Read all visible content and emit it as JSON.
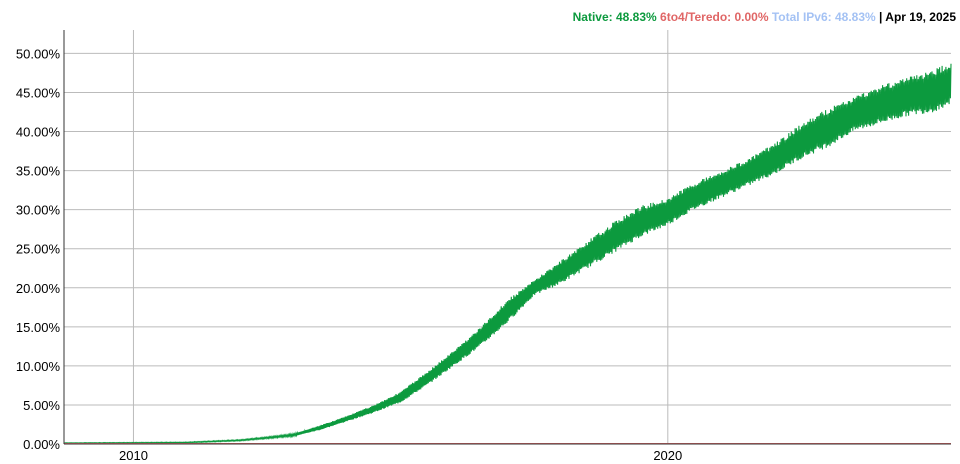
{
  "legend": {
    "native": "Native: 48.83%",
    "teredo": "6to4/Teredo: 0.00%",
    "total": "Total IPv6: 48.83%",
    "date": "| Apr 19, 2025"
  },
  "colors": {
    "native": "#0c9a3e",
    "teredo": "#e06666",
    "total": "#a4c2f4",
    "grid": "#bbbbbb",
    "axis": "#333333"
  },
  "chart_data": {
    "type": "area",
    "title": "",
    "xlabel": "",
    "ylabel": "",
    "xlim": [
      2008.7,
      2025.3
    ],
    "ylim": [
      0,
      53
    ],
    "y_ticks": [
      "0.00%",
      "5.00%",
      "10.00%",
      "15.00%",
      "20.00%",
      "25.00%",
      "30.00%",
      "35.00%",
      "40.00%",
      "45.00%",
      "50.00%"
    ],
    "y_tick_values": [
      0,
      5,
      10,
      15,
      20,
      25,
      30,
      35,
      40,
      45,
      50
    ],
    "x_ticks": [
      "2010",
      "2020"
    ],
    "x_tick_values": [
      2010,
      2020
    ],
    "grid": true,
    "legend_position": "top-right",
    "series": [
      {
        "name": "Native",
        "x": [
          2008.7,
          2010,
          2011,
          2012,
          2012.5,
          2013,
          2013.5,
          2014,
          2014.5,
          2015,
          2015.5,
          2016,
          2016.5,
          2017,
          2017.5,
          2018,
          2018.5,
          2019,
          2019.5,
          2020,
          2020.5,
          2021,
          2021.5,
          2022,
          2022.5,
          2023,
          2023.5,
          2024,
          2024.5,
          2025,
          2025.3
        ],
        "low": [
          0.1,
          0.1,
          0.15,
          0.4,
          0.7,
          1.0,
          1.8,
          2.9,
          4.0,
          5.3,
          7.5,
          10.0,
          12.5,
          15.5,
          19.0,
          20.5,
          22.5,
          24.5,
          26.5,
          28.0,
          30.0,
          31.5,
          33.0,
          34.5,
          36.5,
          38.0,
          40.0,
          41.0,
          42.0,
          42.5,
          43.5
        ],
        "high": [
          0.15,
          0.2,
          0.25,
          0.55,
          0.9,
          1.3,
          2.4,
          3.6,
          5.0,
          6.7,
          9.3,
          12.0,
          15.0,
          18.5,
          21.0,
          23.5,
          26.0,
          28.5,
          30.5,
          31.5,
          33.5,
          35.0,
          36.5,
          38.5,
          41.0,
          43.0,
          44.5,
          46.0,
          47.0,
          48.0,
          49.0
        ]
      },
      {
        "name": "6to4/Teredo",
        "x": [
          2008.7,
          2025.3
        ],
        "values": [
          0.0,
          0.0
        ]
      }
    ]
  }
}
